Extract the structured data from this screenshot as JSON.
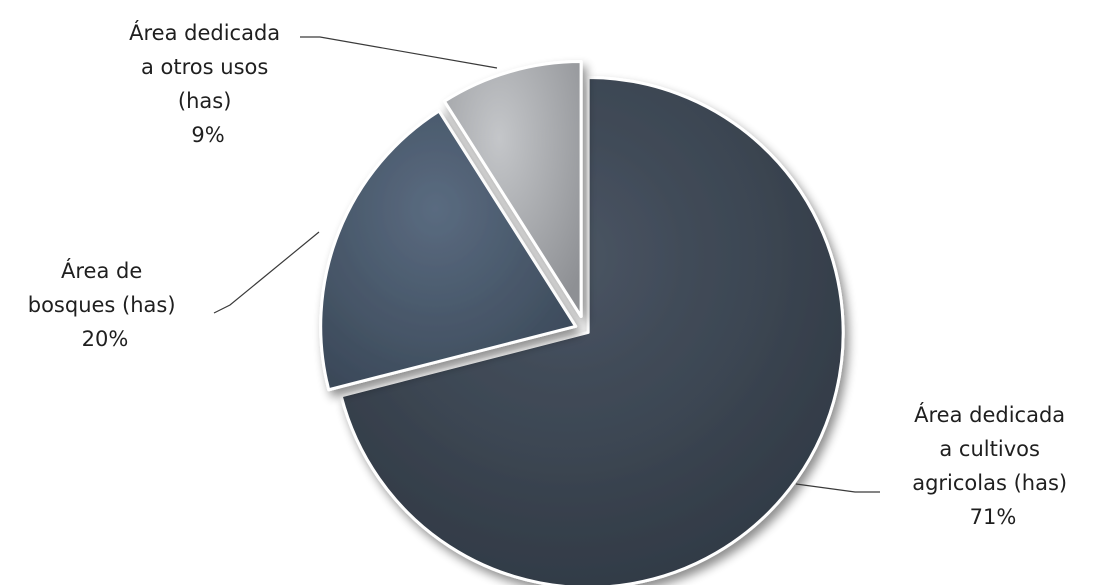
{
  "chart_data": {
    "type": "pie",
    "slices": [
      {
        "label_lines": [
          "Área dedicada",
          "a cultivos",
          "agricolas (has)"
        ],
        "percent_label": "71%",
        "value": 71,
        "color": "#3b4552"
      },
      {
        "label_lines": [
          "Área de",
          "bosques (has)"
        ],
        "percent_label": "20%",
        "value": 20,
        "color": "#4a5a6e"
      },
      {
        "label_lines": [
          "Área dedicada",
          "a otros usos",
          "(has)"
        ],
        "percent_label": "9%",
        "value": 9,
        "color": "#a7a9ac"
      }
    ],
    "start_angle": "12 o'clock, clockwise",
    "exploded": true,
    "legend": "none (data labels)",
    "title": ""
  }
}
